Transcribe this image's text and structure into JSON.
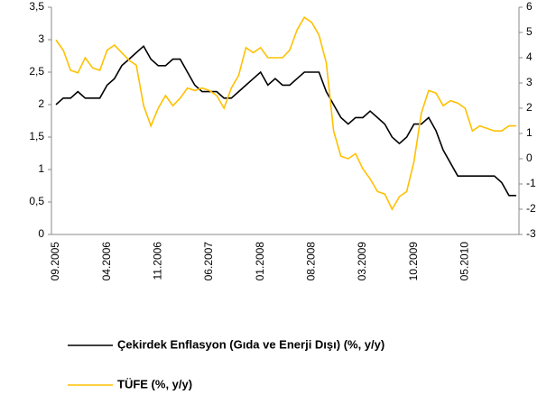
{
  "chart_data": {
    "type": "line",
    "categories": [
      "09.2005",
      null,
      null,
      null,
      null,
      null,
      null,
      "04.2006",
      null,
      null,
      null,
      null,
      null,
      null,
      "11.2006",
      null,
      null,
      null,
      null,
      null,
      null,
      "06.2007",
      null,
      null,
      null,
      null,
      null,
      null,
      "01.2008",
      null,
      null,
      null,
      null,
      null,
      null,
      "08.2008",
      null,
      null,
      null,
      null,
      null,
      null,
      "03.2009",
      null,
      null,
      null,
      null,
      null,
      null,
      "10.2009",
      null,
      null,
      null,
      null,
      null,
      null,
      "05.2010",
      null,
      null,
      null,
      null,
      null,
      null,
      null
    ],
    "series": [
      {
        "name": "Çekirdek Enflasyon (Gıda ve Enerji Dışı) (%, y/y)",
        "color": "#000000",
        "axis": "y",
        "values": [
          2.0,
          2.1,
          2.1,
          2.2,
          2.1,
          2.1,
          2.1,
          2.3,
          2.4,
          2.6,
          2.7,
          2.8,
          2.9,
          2.7,
          2.6,
          2.6,
          2.7,
          2.7,
          2.5,
          2.3,
          2.2,
          2.2,
          2.2,
          2.1,
          2.1,
          2.2,
          2.3,
          2.4,
          2.5,
          2.3,
          2.4,
          2.3,
          2.3,
          2.4,
          2.5,
          2.5,
          2.5,
          2.2,
          2.0,
          1.8,
          1.7,
          1.8,
          1.8,
          1.9,
          1.8,
          1.7,
          1.5,
          1.4,
          1.5,
          1.7,
          1.7,
          1.8,
          1.6,
          1.3,
          1.1,
          0.9,
          0.9,
          0.9,
          0.9,
          0.9,
          0.9,
          0.8,
          0.6,
          0.6
        ]
      },
      {
        "name": "TÜFE (%, y/y)",
        "color": "#FFC000",
        "axis": "y2",
        "values": [
          4.7,
          4.3,
          3.5,
          3.4,
          4.0,
          3.6,
          3.5,
          4.3,
          4.5,
          4.2,
          3.9,
          3.7,
          2.1,
          1.3,
          2.0,
          2.5,
          2.1,
          2.4,
          2.8,
          2.7,
          2.8,
          2.7,
          2.5,
          2.0,
          2.8,
          3.3,
          4.4,
          4.2,
          4.4,
          4.0,
          4.0,
          4.0,
          4.3,
          5.1,
          5.6,
          5.4,
          4.9,
          3.8,
          1.1,
          0.1,
          0.0,
          0.2,
          -0.4,
          -0.8,
          -1.3,
          -1.4,
          -2.0,
          -1.5,
          -1.3,
          -0.1,
          1.8,
          2.7,
          2.6,
          2.1,
          2.3,
          2.2,
          2.0,
          1.1,
          1.3,
          1.2,
          1.1,
          1.1,
          1.3,
          1.3
        ]
      }
    ],
    "ylim": [
      0,
      3.5
    ],
    "yticks": [
      0,
      {
        "value": 0.5,
        "label": "0,5"
      },
      1,
      {
        "value": 1.5,
        "label": "1,5"
      },
      2,
      {
        "value": 2.5,
        "label": "2,5"
      },
      3,
      {
        "value": 3.5,
        "label": "3,5"
      }
    ],
    "y2lim": [
      -3,
      6
    ],
    "y2ticks": [
      -3,
      -2,
      -1,
      0,
      1,
      2,
      3,
      4,
      5,
      6
    ],
    "grid": false,
    "legend": "bottom"
  }
}
